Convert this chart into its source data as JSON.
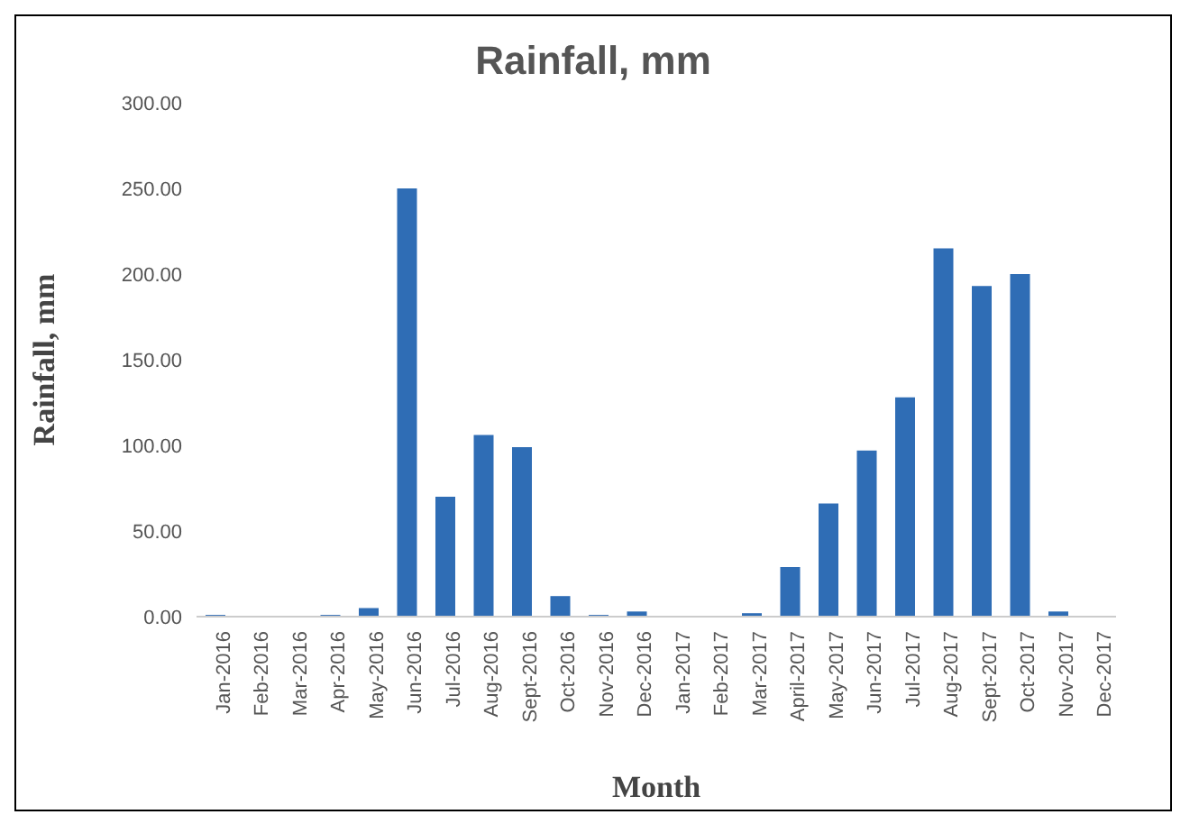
{
  "chart_data": {
    "type": "bar",
    "title": "Rainfall, mm",
    "xlabel": "Month",
    "ylabel": "Rainfall, mm",
    "categories": [
      "Jan-2016",
      "Feb-2016",
      "Mar-2016",
      "Apr-2016",
      "May-2016",
      "Jun-2016",
      "Jul-2016",
      "Aug-2016",
      "Sept-2016",
      "Oct-2016",
      "Nov-2016",
      "Dec-2016",
      "Jan-2017",
      "Feb-2017",
      "Mar-2017",
      "April-2017",
      "May-2017",
      "Jun-2017",
      "Jul-2017",
      "Aug-2017",
      "Sept-2017",
      "Oct-2017",
      "Nov-2017",
      "Dec-2017"
    ],
    "values": [
      1,
      0,
      0,
      1,
      5,
      250,
      70,
      106,
      99,
      12,
      1,
      3,
      0,
      0,
      2,
      29,
      66,
      97,
      128,
      215,
      193,
      200,
      3,
      0
    ],
    "color": "#2f6db5",
    "ylim": [
      0,
      300
    ],
    "yticks": [
      {
        "value": 0,
        "label": "0.00"
      },
      {
        "value": 50,
        "label": "50.00"
      },
      {
        "value": 100,
        "label": "100.00"
      },
      {
        "value": 150,
        "label": "150.00"
      },
      {
        "value": 200,
        "label": "200.00"
      },
      {
        "value": 250,
        "label": "250.00"
      },
      {
        "value": 300,
        "label": "300.00"
      }
    ],
    "grid": false,
    "legend": false
  }
}
